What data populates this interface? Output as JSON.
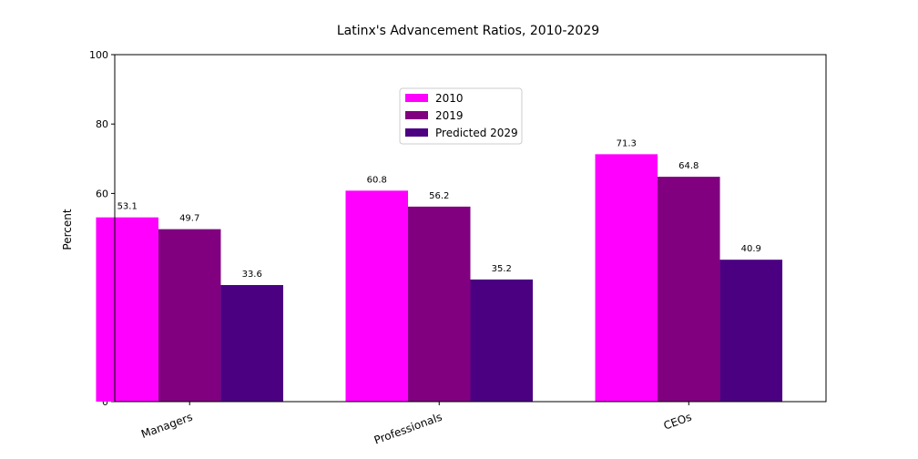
{
  "chart_data": {
    "type": "bar",
    "title": "Latinx's Advancement Ratios, 2010-2029",
    "xlabel": "",
    "ylabel": "Percent",
    "ylim": [
      0,
      100
    ],
    "yticks": [
      0,
      20,
      40,
      60,
      80,
      100
    ],
    "categories": [
      "Managers",
      "Professionals",
      "CEOs"
    ],
    "series": [
      {
        "name": "2010",
        "color": "#ff00ff",
        "values": [
          53.1,
          60.8,
          71.3
        ]
      },
      {
        "name": "2019",
        "color": "#800080",
        "values": [
          49.7,
          56.2,
          64.8
        ]
      },
      {
        "name": "Predicted 2029",
        "color": "#4b0082",
        "values": [
          33.6,
          35.2,
          40.9
        ]
      }
    ],
    "data_labels": [
      [
        "53.1",
        "60.8",
        "71.3"
      ],
      [
        "49.7",
        "56.2",
        "64.8"
      ],
      [
        "33.6",
        "35.2",
        "40.9"
      ]
    ],
    "legend": {
      "position": "upper-center"
    },
    "grid": false
  }
}
